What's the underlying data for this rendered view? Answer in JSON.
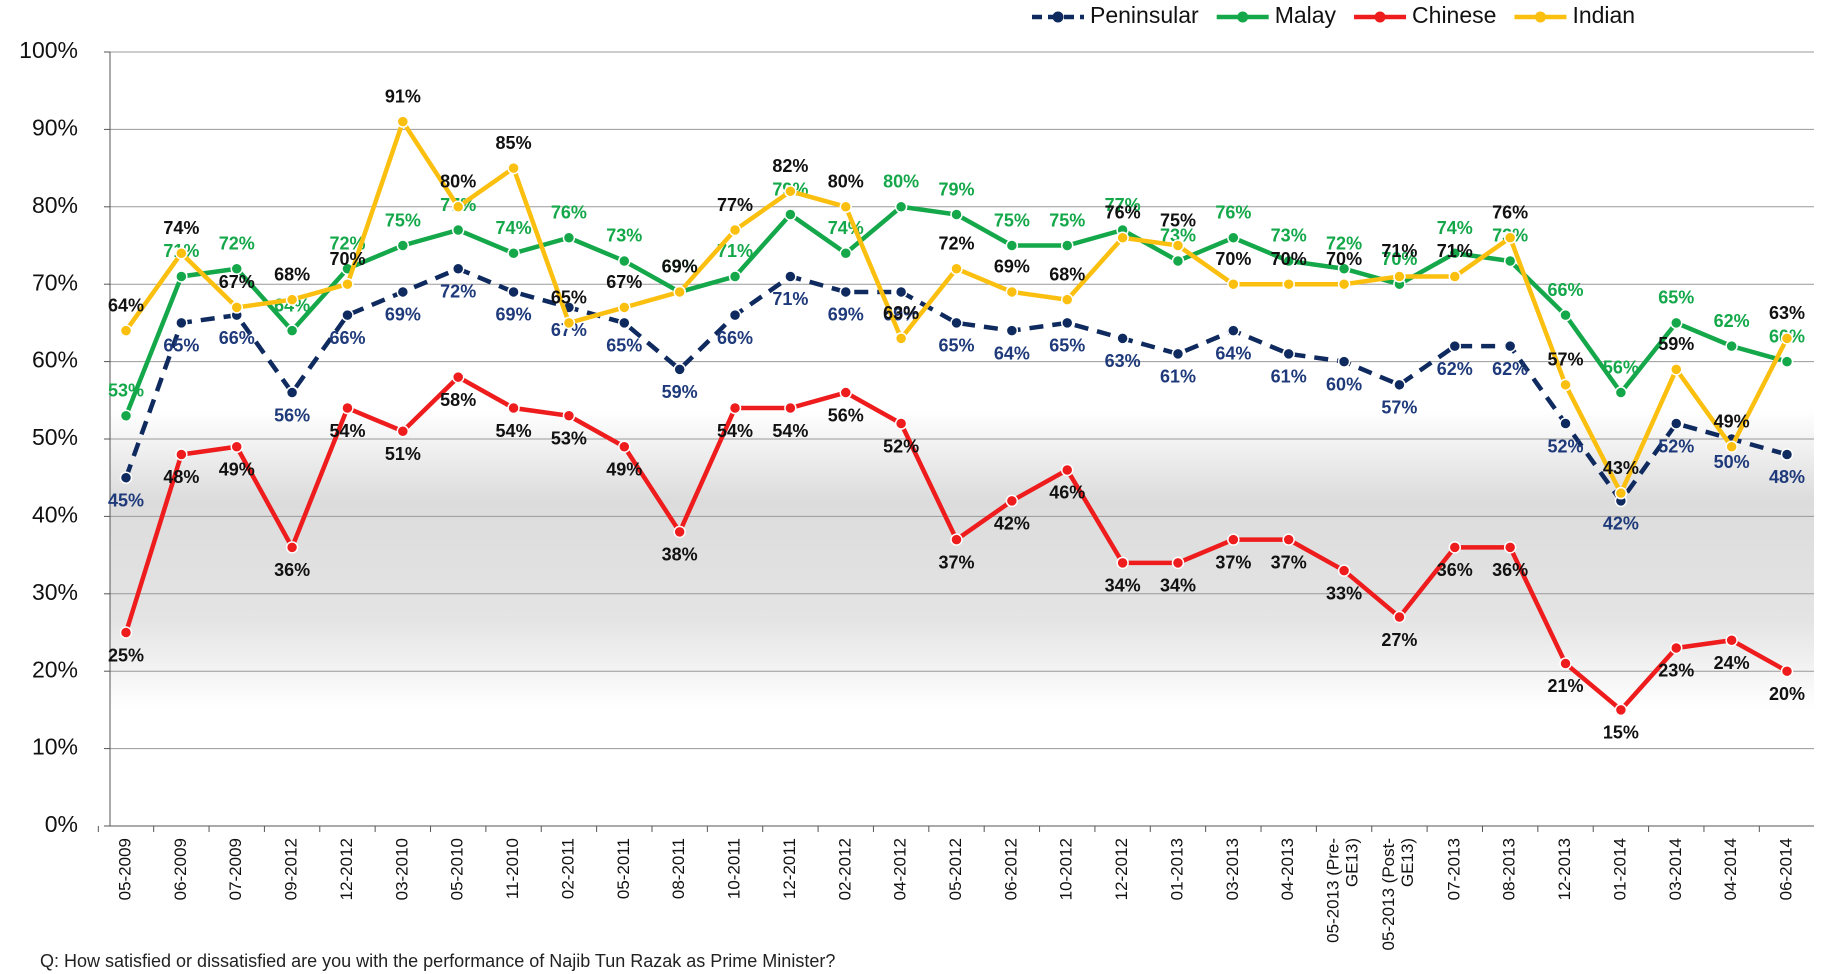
{
  "chart_data": {
    "type": "line",
    "categories": [
      "05-2009",
      "06-2009",
      "07-2009",
      "09-2012",
      "12-2012",
      "03-2010",
      "05-2010",
      "11-2010",
      "02-2011",
      "05-2011",
      "08-2011",
      "10-2011",
      "12-2011",
      "02-2012",
      "04-2012",
      "05-2012",
      "06-2012",
      "10-2012",
      "12-2012",
      "01-2013",
      "03-2013",
      "04-2013",
      "05-2013 (Pre-GE13)",
      "05-2013 (Post-GE13)",
      "07-2013",
      "08-2013",
      "12-2013",
      "01-2014",
      "03-2014",
      "04-2014",
      "06-2014"
    ],
    "series": [
      {
        "name": "Peninsular",
        "color": "#0f2a5e",
        "label_color": "#1f3a7a",
        "dash": true,
        "values": [
          45,
          65,
          66,
          56,
          66,
          69,
          72,
          69,
          67,
          65,
          59,
          66,
          71,
          69,
          69,
          65,
          64,
          65,
          63,
          61,
          64,
          61,
          60,
          57,
          62,
          62,
          52,
          42,
          52,
          50,
          48
        ],
        "value_labels": [
          "45%",
          "65%",
          "66%",
          "56%",
          "66%",
          "69%",
          "72%",
          "69%",
          "67%",
          "65%",
          "59%",
          "66%",
          "71%",
          "69%",
          "69%",
          "65%",
          "64%",
          "65%",
          "63%",
          "61%",
          "64%",
          "61%",
          "60%",
          "57%",
          "62%",
          "62%",
          "52%",
          "42%",
          "52%",
          "50%",
          "48%"
        ]
      },
      {
        "name": "Malay",
        "color": "#14a84a",
        "label_color": "#14a84a",
        "dash": false,
        "values": [
          53,
          71,
          72,
          64,
          72,
          75,
          77,
          74,
          76,
          73,
          69,
          71,
          79,
          74,
          80,
          79,
          75,
          75,
          77,
          73,
          76,
          73,
          72,
          70,
          74,
          73,
          66,
          56,
          65,
          62,
          60
        ],
        "value_labels": [
          "53%",
          "71%",
          "72%",
          "64%",
          "72%",
          "75%",
          "77%",
          "74%",
          "76%",
          "73%",
          "69%",
          "71%",
          "79%",
          "74%",
          "80%",
          "79%",
          "75%",
          "75%",
          "77%",
          "73%",
          "76%",
          "73%",
          "72%",
          "70%",
          "74%",
          "73%",
          "66%",
          "56%",
          "65%",
          "62%",
          "60%"
        ]
      },
      {
        "name": "Chinese",
        "color": "#ee1c1c",
        "label_color": "#111111",
        "dash": false,
        "values": [
          25,
          48,
          49,
          36,
          54,
          51,
          58,
          54,
          53,
          49,
          38,
          54,
          54,
          56,
          52,
          37,
          42,
          46,
          34,
          34,
          37,
          37,
          33,
          27,
          36,
          36,
          21,
          15,
          23,
          24,
          20
        ],
        "value_labels": [
          "25%",
          "48%",
          "49%",
          "36%",
          "54%",
          "51%",
          "58%",
          "54%",
          "53%",
          "49%",
          "38%",
          "54%",
          "54%",
          "56%",
          "52%",
          "37%",
          "42%",
          "46%",
          "34%",
          "34%",
          "37%",
          "37%",
          "33%",
          "27%",
          "36%",
          "36%",
          "21%",
          "15%",
          "23%",
          "24%",
          "20%"
        ]
      },
      {
        "name": "Indian",
        "color": "#fbbf0f",
        "label_color": "#111111",
        "dash": false,
        "values": [
          64,
          74,
          67,
          68,
          70,
          91,
          80,
          85,
          65,
          67,
          69,
          77,
          82,
          80,
          63,
          72,
          69,
          68,
          76,
          75,
          70,
          70,
          70,
          71,
          71,
          76,
          57,
          43,
          59,
          49,
          63
        ],
        "value_labels": [
          "64%",
          "74%",
          "67%",
          "68%",
          "70%",
          "91%",
          "80%",
          "85%",
          "65%",
          "67%",
          "69%",
          "77%",
          "82%",
          "80%",
          "63%",
          "72%",
          "69%",
          "68%",
          "76%",
          "75%",
          "70%",
          "70%",
          "70%",
          "71%",
          "71%",
          "76%",
          "57%",
          "43%",
          "59%",
          "49%",
          "63%"
        ]
      }
    ],
    "ylim": [
      0,
      100
    ],
    "yticks": [
      {
        "value": 0,
        "label": "0%"
      },
      {
        "value": 10,
        "label": "10%"
      },
      {
        "value": 20,
        "label": "20%"
      },
      {
        "value": 30,
        "label": "30%"
      },
      {
        "value": 40,
        "label": "40%"
      },
      {
        "value": 50,
        "label": "50%"
      },
      {
        "value": 60,
        "label": "60%"
      },
      {
        "value": 70,
        "label": "70%"
      },
      {
        "value": 80,
        "label": "80%"
      },
      {
        "value": 90,
        "label": "90%"
      },
      {
        "value": 100,
        "label": "100%"
      }
    ],
    "grid": true,
    "legend": "top-right",
    "note": "Q: How satisfied or dissatisfied are you with the performance of Najib Tun Razak as Prime Minister?"
  }
}
